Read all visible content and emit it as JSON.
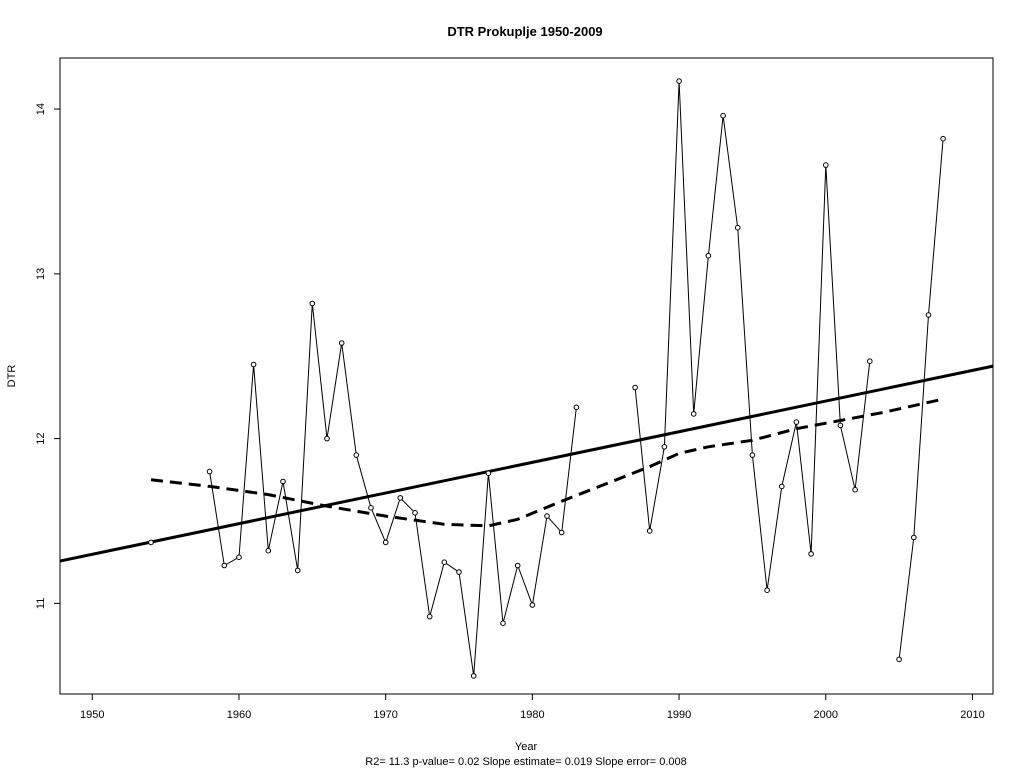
{
  "chart_data": {
    "type": "line",
    "title": "DTR   Prokuplje 1950-2009",
    "xlabel": "Year",
    "ylabel": "DTR",
    "subtitle": "R2= 11.3  p-value= 0.02  Slope estimate= 0.019  Slope error= 0.008",
    "xlim": [
      1947.8,
      2011.4
    ],
    "ylim": [
      10.45,
      14.31
    ],
    "x_ticks": [
      1950,
      1960,
      1970,
      1980,
      1990,
      2000,
      2010
    ],
    "y_ticks": [
      11,
      12,
      13,
      14
    ],
    "grid": false,
    "legend": "none",
    "observed": {
      "x": [
        1954,
        1958,
        1959,
        1960,
        1961,
        1962,
        1963,
        1964,
        1965,
        1966,
        1967,
        1968,
        1969,
        1970,
        1971,
        1972,
        1973,
        1974,
        1975,
        1976,
        1977,
        1978,
        1979,
        1980,
        1981,
        1982,
        1983,
        1987,
        1988,
        1989,
        1990,
        1991,
        1992,
        1993,
        1994,
        1995,
        1996,
        1997,
        1998,
        1999,
        2000,
        2001,
        2002,
        2003,
        2005,
        2006,
        2007,
        2008
      ],
      "y": [
        11.37,
        11.8,
        11.23,
        11.28,
        12.45,
        11.32,
        11.74,
        11.2,
        12.82,
        12.0,
        12.58,
        11.9,
        11.58,
        11.37,
        11.64,
        11.55,
        10.92,
        11.25,
        11.19,
        10.56,
        11.79,
        10.88,
        11.23,
        10.99,
        11.53,
        11.43,
        12.19,
        12.31,
        11.44,
        11.95,
        14.17,
        12.15,
        13.11,
        13.96,
        13.28,
        11.9,
        11.08,
        11.71,
        12.1,
        11.3,
        13.66,
        12.08,
        11.69,
        12.47,
        10.66,
        11.4,
        12.75,
        13.82
      ]
    },
    "linear_trend": {
      "x": [
        1947.8,
        2011.4
      ],
      "y": [
        11.257,
        12.44
      ]
    },
    "smooth": {
      "x": [
        1954,
        1958,
        1962,
        1966,
        1970,
        1974,
        1977,
        1979,
        1982,
        1984,
        1986,
        1988,
        1990,
        1992,
        1995,
        1998,
        2001,
        2004,
        2008
      ],
      "y": [
        11.75,
        11.71,
        11.66,
        11.59,
        11.53,
        11.48,
        11.47,
        11.51,
        11.62,
        11.69,
        11.76,
        11.83,
        11.91,
        11.95,
        11.99,
        12.06,
        12.11,
        12.16,
        12.24
      ]
    }
  }
}
